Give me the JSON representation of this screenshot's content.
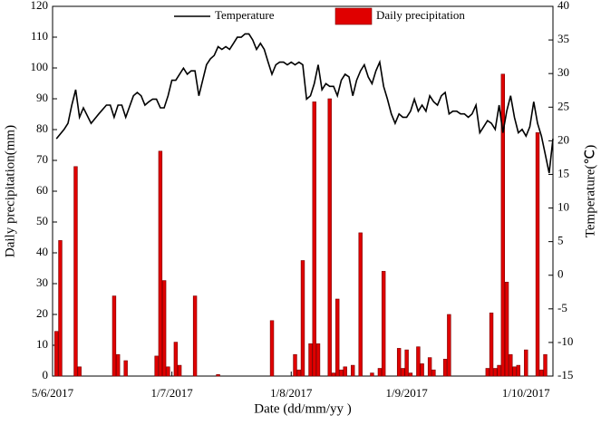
{
  "chart_data": {
    "type": "bar_line",
    "xlabel": "Date (dd/mm/yy )",
    "ylabel": "Daily precipitation(mm)",
    "y2label": "Temperature(℃)",
    "xlim": [
      0,
      130
    ],
    "xticks": [
      {
        "value": 0,
        "label": "5/6/2017"
      },
      {
        "value": 31,
        "label": "1/7/2017"
      },
      {
        "value": 62,
        "label": "1/8/2017"
      },
      {
        "value": 92,
        "label": "1/9/2017"
      },
      {
        "value": 123,
        "label": "1/10/2017"
      }
    ],
    "ylim": [
      0,
      120
    ],
    "yticks": [
      0,
      10,
      20,
      30,
      40,
      50,
      60,
      70,
      80,
      90,
      100,
      110,
      120
    ],
    "y2lim": [
      -15,
      40
    ],
    "y2ticks": [
      -15,
      -10,
      -5,
      0,
      5,
      10,
      15,
      20,
      25,
      30,
      35,
      40
    ],
    "series": [
      {
        "name": "Temperature",
        "type": "line",
        "axis": "y2",
        "color": "#000000",
        "x": [
          1,
          3,
          4,
          5,
          6,
          7,
          8,
          10,
          12,
          14,
          15,
          16,
          17,
          18,
          19,
          21,
          22,
          23,
          24,
          25,
          26,
          27,
          28,
          29,
          30,
          31,
          32,
          33,
          34,
          35,
          36,
          37,
          38,
          39,
          40,
          41,
          42,
          43,
          44,
          45,
          46,
          47,
          48,
          49,
          50,
          51,
          52,
          53,
          54,
          55,
          56,
          57,
          58,
          59,
          60,
          61,
          62,
          63,
          64,
          65,
          66,
          67,
          68,
          69,
          70,
          71,
          72,
          73,
          74,
          75,
          76,
          77,
          78,
          79,
          80,
          81,
          82,
          83,
          84,
          85,
          86,
          87,
          88,
          89,
          90,
          91,
          92,
          93,
          94,
          95,
          96,
          97,
          98,
          99,
          100,
          101,
          102,
          103,
          104,
          105,
          106,
          107,
          108,
          109,
          110,
          111,
          112,
          113,
          114,
          115,
          116,
          117,
          118,
          119,
          120,
          121,
          122,
          123,
          124,
          125,
          126,
          127,
          128,
          129,
          130
        ],
        "values": [
          20.3,
          21.7,
          22.6,
          25.3,
          27.6,
          23.5,
          24.9,
          22.6,
          24.0,
          25.3,
          25.3,
          23.5,
          25.3,
          25.3,
          23.5,
          26.7,
          27.2,
          26.7,
          25.3,
          25.8,
          26.2,
          26.2,
          24.9,
          24.9,
          26.7,
          29.0,
          29.0,
          29.9,
          30.8,
          29.9,
          30.4,
          30.4,
          26.7,
          29.0,
          31.3,
          32.2,
          32.7,
          34.0,
          33.6,
          34.0,
          33.6,
          34.5,
          35.4,
          35.4,
          35.9,
          35.9,
          35.0,
          33.6,
          34.5,
          33.6,
          31.7,
          29.9,
          31.3,
          31.7,
          31.7,
          31.3,
          31.7,
          31.3,
          31.7,
          31.3,
          26.2,
          26.7,
          28.5,
          31.3,
          27.6,
          28.5,
          28.1,
          28.1,
          26.7,
          29.0,
          29.9,
          29.5,
          26.7,
          29.0,
          30.4,
          31.3,
          29.5,
          28.5,
          30.4,
          31.7,
          28.1,
          26.2,
          24.0,
          22.6,
          24.0,
          23.5,
          23.5,
          24.4,
          26.2,
          24.4,
          25.3,
          24.4,
          26.7,
          25.8,
          25.3,
          26.7,
          27.2,
          24.0,
          24.4,
          24.4,
          24.0,
          24.0,
          23.5,
          24.0,
          25.3,
          21.2,
          22.1,
          23.0,
          22.6,
          21.7,
          25.3,
          21.2,
          24.4,
          26.7,
          23.5,
          21.2,
          21.7,
          20.7,
          22.1,
          25.8,
          22.6,
          20.7,
          18.0,
          15.2,
          20.3
        ]
      },
      {
        "name": "Daily precipitation",
        "type": "bar",
        "axis": "y",
        "color": "#e00000",
        "x": [
          1,
          2,
          6,
          7,
          16,
          17,
          19,
          27,
          28,
          29,
          30,
          32,
          33,
          37,
          43,
          57,
          63,
          64,
          65,
          67,
          68,
          69,
          72,
          73,
          74,
          75,
          76,
          78,
          80,
          83,
          85,
          86,
          90,
          91,
          92,
          93,
          95,
          96,
          98,
          99,
          102,
          103,
          113,
          114,
          115,
          116,
          117,
          118,
          119,
          120,
          121,
          123,
          126,
          127,
          128
        ],
        "values": [
          14.5,
          44,
          68,
          3,
          26,
          7,
          5,
          6.5,
          73,
          31,
          3,
          11,
          3.5,
          26,
          0.5,
          18,
          7,
          2,
          37.5,
          10.5,
          89,
          10.5,
          90,
          1,
          25,
          2,
          3,
          3.5,
          46.5,
          1,
          2.5,
          34,
          9,
          2.5,
          8.5,
          1,
          9.5,
          4,
          6,
          2,
          5.5,
          20,
          2.5,
          20.5,
          2.5,
          3.5,
          98,
          30.5,
          7,
          3,
          3.5,
          8.5,
          79,
          2,
          7
        ]
      }
    ]
  }
}
